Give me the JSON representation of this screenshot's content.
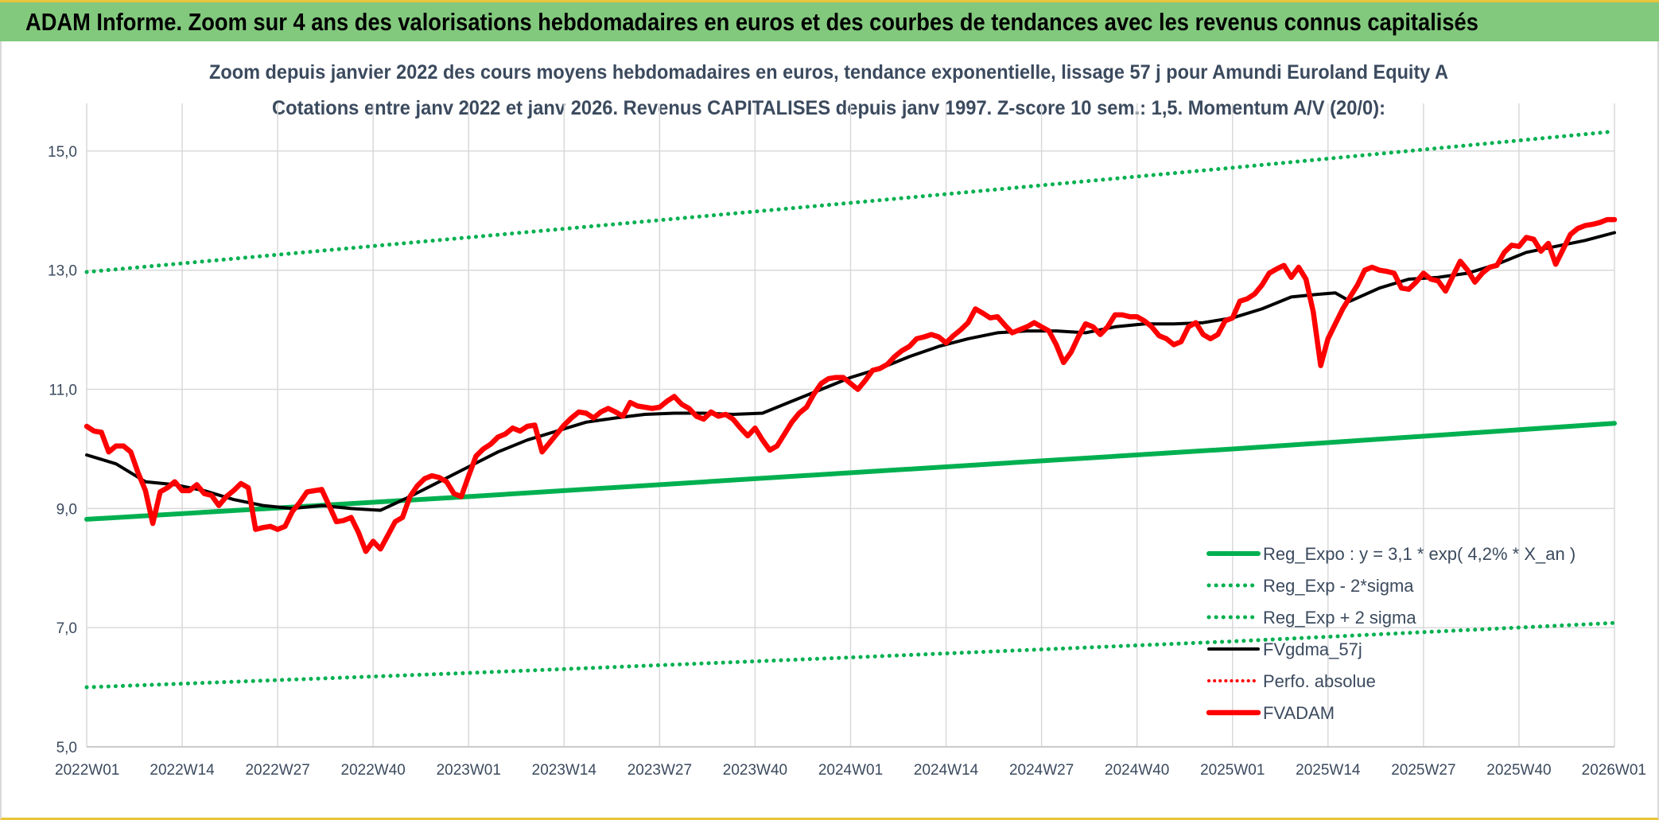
{
  "banner": {
    "title": "ADAM Informe. Zoom sur 4 ans des valorisations hebdomadaires en euros et des courbes de tendances avec les revenus connus capitalisés"
  },
  "colors": {
    "banner_bg": "#82c97d",
    "accent_line": "#e8c53a",
    "trend_green": "#00b050",
    "price_red": "#ff0000",
    "average_black": "#000000",
    "text": "#3b4a5e",
    "grid": "#d9d9d9"
  },
  "chart_data": {
    "type": "line",
    "title": "Zoom depuis janvier 2022 des cours moyens hebdomadaires en euros, tendance exponentielle, lissage 57 j pour Amundi Euroland Equity A",
    "subtitle": "Cotations entre janv 2022 et janv 2026. Revenus CAPITALISES depuis janv 1997. Z-score 10 sem.: 1,5. Momentum A/V (20/0):",
    "xlabel": "",
    "ylabel": "",
    "ylim": [
      5,
      15.8
    ],
    "yticks": [
      5,
      7,
      9,
      11,
      13,
      15
    ],
    "ytick_labels": [
      "5,0",
      "7,0",
      "9,0",
      "11,0",
      "13,0",
      "15,0"
    ],
    "x_tick_labels": [
      "2022W01",
      "2022W14",
      "2022W27",
      "2022W40",
      "2023W01",
      "2023W14",
      "2023W27",
      "2023W40",
      "2024W01",
      "2024W14",
      "2024W27",
      "2024W40",
      "2025W01",
      "2025W14",
      "2025W27",
      "2025W40",
      "2026W01"
    ],
    "x_tick_weeks": [
      0,
      13,
      26,
      39,
      52,
      65,
      78,
      91,
      104,
      117,
      130,
      143,
      156,
      169,
      182,
      195,
      208
    ],
    "grid": true,
    "legend_position": "bottom-right",
    "series": [
      {
        "name": "Reg_Expo : y = 3,1 * exp( 4,2% *  X_an )",
        "style": "solid-green",
        "points": [
          [
            0,
            8.82
          ],
          [
            52,
            9.2
          ],
          [
            104,
            9.6
          ],
          [
            156,
            10.0
          ],
          [
            208,
            10.43
          ]
        ]
      },
      {
        "name": "Reg_Exp - 2*sigma",
        "style": "dotted-green",
        "points": [
          [
            0,
            6.0
          ],
          [
            52,
            6.24
          ],
          [
            104,
            6.5
          ],
          [
            156,
            6.77
          ],
          [
            208,
            7.08
          ]
        ]
      },
      {
        "name": "Reg_Exp + 2 sigma",
        "style": "dotted-green",
        "points": [
          [
            0,
            12.97
          ],
          [
            52,
            13.55
          ],
          [
            104,
            14.13
          ],
          [
            156,
            14.72
          ],
          [
            208,
            15.33
          ]
        ]
      },
      {
        "name": "FVgdma_57j",
        "style": "solid-black",
        "points": [
          [
            0,
            9.9
          ],
          [
            4,
            9.75
          ],
          [
            8,
            9.45
          ],
          [
            12,
            9.4
          ],
          [
            16,
            9.3
          ],
          [
            20,
            9.15
          ],
          [
            24,
            9.05
          ],
          [
            28,
            9.0
          ],
          [
            32,
            9.05
          ],
          [
            36,
            9.0
          ],
          [
            40,
            8.97
          ],
          [
            44,
            9.2
          ],
          [
            48,
            9.45
          ],
          [
            52,
            9.7
          ],
          [
            56,
            9.95
          ],
          [
            60,
            10.15
          ],
          [
            64,
            10.3
          ],
          [
            68,
            10.45
          ],
          [
            72,
            10.52
          ],
          [
            76,
            10.58
          ],
          [
            80,
            10.6
          ],
          [
            84,
            10.6
          ],
          [
            88,
            10.58
          ],
          [
            92,
            10.6
          ],
          [
            96,
            10.8
          ],
          [
            100,
            11.0
          ],
          [
            104,
            11.2
          ],
          [
            108,
            11.35
          ],
          [
            112,
            11.55
          ],
          [
            116,
            11.72
          ],
          [
            120,
            11.85
          ],
          [
            124,
            11.95
          ],
          [
            128,
            11.98
          ],
          [
            132,
            11.98
          ],
          [
            136,
            11.95
          ],
          [
            140,
            12.05
          ],
          [
            144,
            12.1
          ],
          [
            148,
            12.1
          ],
          [
            152,
            12.12
          ],
          [
            156,
            12.2
          ],
          [
            160,
            12.35
          ],
          [
            164,
            12.55
          ],
          [
            168,
            12.6
          ],
          [
            170,
            12.62
          ],
          [
            172,
            12.48
          ],
          [
            176,
            12.7
          ],
          [
            180,
            12.85
          ],
          [
            184,
            12.88
          ],
          [
            188,
            12.95
          ],
          [
            192,
            13.1
          ],
          [
            196,
            13.3
          ],
          [
            200,
            13.4
          ],
          [
            204,
            13.5
          ],
          [
            208,
            13.63
          ]
        ]
      },
      {
        "name": "Perfo. absolue",
        "style": "dotted-red",
        "points": []
      },
      {
        "name": "FVADAM",
        "style": "solid-red-thick",
        "points": [
          [
            0,
            10.38
          ],
          [
            1,
            10.3
          ],
          [
            2,
            10.28
          ],
          [
            3,
            9.95
          ],
          [
            4,
            10.05
          ],
          [
            5,
            10.05
          ],
          [
            6,
            9.95
          ],
          [
            7,
            9.6
          ],
          [
            8,
            9.3
          ],
          [
            9,
            8.75
          ],
          [
            10,
            9.28
          ],
          [
            11,
            9.35
          ],
          [
            12,
            9.45
          ],
          [
            13,
            9.3
          ],
          [
            14,
            9.3
          ],
          [
            15,
            9.4
          ],
          [
            16,
            9.25
          ],
          [
            17,
            9.22
          ],
          [
            18,
            9.05
          ],
          [
            19,
            9.2
          ],
          [
            20,
            9.3
          ],
          [
            21,
            9.42
          ],
          [
            22,
            9.35
          ],
          [
            23,
            8.65
          ],
          [
            24,
            8.68
          ],
          [
            25,
            8.7
          ],
          [
            26,
            8.65
          ],
          [
            27,
            8.7
          ],
          [
            28,
            8.95
          ],
          [
            29,
            9.1
          ],
          [
            30,
            9.28
          ],
          [
            31,
            9.3
          ],
          [
            32,
            9.32
          ],
          [
            33,
            9.05
          ],
          [
            34,
            8.78
          ],
          [
            35,
            8.8
          ],
          [
            36,
            8.85
          ],
          [
            37,
            8.6
          ],
          [
            38,
            8.28
          ],
          [
            39,
            8.45
          ],
          [
            40,
            8.32
          ],
          [
            41,
            8.55
          ],
          [
            42,
            8.78
          ],
          [
            43,
            8.85
          ],
          [
            44,
            9.2
          ],
          [
            45,
            9.38
          ],
          [
            46,
            9.5
          ],
          [
            47,
            9.55
          ],
          [
            48,
            9.52
          ],
          [
            49,
            9.45
          ],
          [
            50,
            9.25
          ],
          [
            51,
            9.2
          ],
          [
            52,
            9.55
          ],
          [
            53,
            9.88
          ],
          [
            54,
            10.0
          ],
          [
            55,
            10.08
          ],
          [
            56,
            10.2
          ],
          [
            57,
            10.25
          ],
          [
            58,
            10.35
          ],
          [
            59,
            10.3
          ],
          [
            60,
            10.38
          ],
          [
            61,
            10.4
          ],
          [
            62,
            9.95
          ],
          [
            63,
            10.1
          ],
          [
            64,
            10.25
          ],
          [
            65,
            10.4
          ],
          [
            66,
            10.52
          ],
          [
            67,
            10.62
          ],
          [
            68,
            10.6
          ],
          [
            69,
            10.52
          ],
          [
            70,
            10.62
          ],
          [
            71,
            10.68
          ],
          [
            72,
            10.62
          ],
          [
            73,
            10.55
          ],
          [
            74,
            10.78
          ],
          [
            75,
            10.72
          ],
          [
            76,
            10.7
          ],
          [
            77,
            10.68
          ],
          [
            78,
            10.7
          ],
          [
            79,
            10.8
          ],
          [
            80,
            10.88
          ],
          [
            81,
            10.75
          ],
          [
            82,
            10.68
          ],
          [
            83,
            10.55
          ],
          [
            84,
            10.5
          ],
          [
            85,
            10.62
          ],
          [
            86,
            10.55
          ],
          [
            87,
            10.58
          ],
          [
            88,
            10.5
          ],
          [
            89,
            10.35
          ],
          [
            90,
            10.22
          ],
          [
            91,
            10.35
          ],
          [
            92,
            10.15
          ],
          [
            93,
            9.98
          ],
          [
            94,
            10.05
          ],
          [
            95,
            10.25
          ],
          [
            96,
            10.45
          ],
          [
            97,
            10.6
          ],
          [
            98,
            10.7
          ],
          [
            99,
            10.92
          ],
          [
            100,
            11.1
          ],
          [
            101,
            11.18
          ],
          [
            102,
            11.2
          ],
          [
            103,
            11.2
          ],
          [
            104,
            11.1
          ],
          [
            105,
            11.0
          ],
          [
            106,
            11.15
          ],
          [
            107,
            11.32
          ],
          [
            108,
            11.35
          ],
          [
            109,
            11.42
          ],
          [
            110,
            11.55
          ],
          [
            111,
            11.65
          ],
          [
            112,
            11.72
          ],
          [
            113,
            11.85
          ],
          [
            114,
            11.88
          ],
          [
            115,
            11.92
          ],
          [
            116,
            11.88
          ],
          [
            117,
            11.78
          ],
          [
            118,
            11.9
          ],
          [
            119,
            12.0
          ],
          [
            120,
            12.12
          ],
          [
            121,
            12.35
          ],
          [
            122,
            12.28
          ],
          [
            123,
            12.2
          ],
          [
            124,
            12.22
          ],
          [
            125,
            12.08
          ],
          [
            126,
            11.95
          ],
          [
            127,
            12.0
          ],
          [
            128,
            12.05
          ],
          [
            129,
            12.12
          ],
          [
            130,
            12.05
          ],
          [
            131,
            11.98
          ],
          [
            132,
            11.75
          ],
          [
            133,
            11.45
          ],
          [
            134,
            11.62
          ],
          [
            135,
            11.88
          ],
          [
            136,
            12.1
          ],
          [
            137,
            12.05
          ],
          [
            138,
            11.92
          ],
          [
            139,
            12.05
          ],
          [
            140,
            12.25
          ],
          [
            141,
            12.25
          ],
          [
            142,
            12.22
          ],
          [
            143,
            12.22
          ],
          [
            144,
            12.15
          ],
          [
            145,
            12.05
          ],
          [
            146,
            11.9
          ],
          [
            147,
            11.85
          ],
          [
            148,
            11.75
          ],
          [
            149,
            11.8
          ],
          [
            150,
            12.05
          ],
          [
            151,
            12.12
          ],
          [
            152,
            11.92
          ],
          [
            153,
            11.85
          ],
          [
            154,
            11.92
          ],
          [
            155,
            12.15
          ],
          [
            156,
            12.2
          ],
          [
            157,
            12.48
          ],
          [
            158,
            12.52
          ],
          [
            159,
            12.6
          ],
          [
            160,
            12.75
          ],
          [
            161,
            12.95
          ],
          [
            162,
            13.02
          ],
          [
            163,
            13.08
          ],
          [
            164,
            12.88
          ],
          [
            165,
            13.05
          ],
          [
            166,
            12.85
          ],
          [
            167,
            12.3
          ],
          [
            168,
            11.4
          ],
          [
            169,
            11.85
          ],
          [
            170,
            12.1
          ],
          [
            171,
            12.35
          ],
          [
            172,
            12.55
          ],
          [
            173,
            12.75
          ],
          [
            174,
            13.0
          ],
          [
            175,
            13.05
          ],
          [
            176,
            13.0
          ],
          [
            177,
            12.98
          ],
          [
            178,
            12.95
          ],
          [
            179,
            12.7
          ],
          [
            180,
            12.68
          ],
          [
            181,
            12.8
          ],
          [
            182,
            12.95
          ],
          [
            183,
            12.85
          ],
          [
            184,
            12.82
          ],
          [
            185,
            12.65
          ],
          [
            186,
            12.9
          ],
          [
            187,
            13.15
          ],
          [
            188,
            13.0
          ],
          [
            189,
            12.8
          ],
          [
            190,
            12.95
          ],
          [
            191,
            13.05
          ],
          [
            192,
            13.08
          ],
          [
            193,
            13.3
          ],
          [
            194,
            13.42
          ],
          [
            195,
            13.4
          ],
          [
            196,
            13.55
          ],
          [
            197,
            13.52
          ],
          [
            198,
            13.32
          ],
          [
            199,
            13.45
          ],
          [
            200,
            13.1
          ],
          [
            201,
            13.35
          ],
          [
            202,
            13.6
          ],
          [
            203,
            13.7
          ],
          [
            204,
            13.75
          ],
          [
            205,
            13.77
          ],
          [
            206,
            13.8
          ],
          [
            207,
            13.85
          ],
          [
            208,
            13.85
          ]
        ]
      }
    ]
  }
}
